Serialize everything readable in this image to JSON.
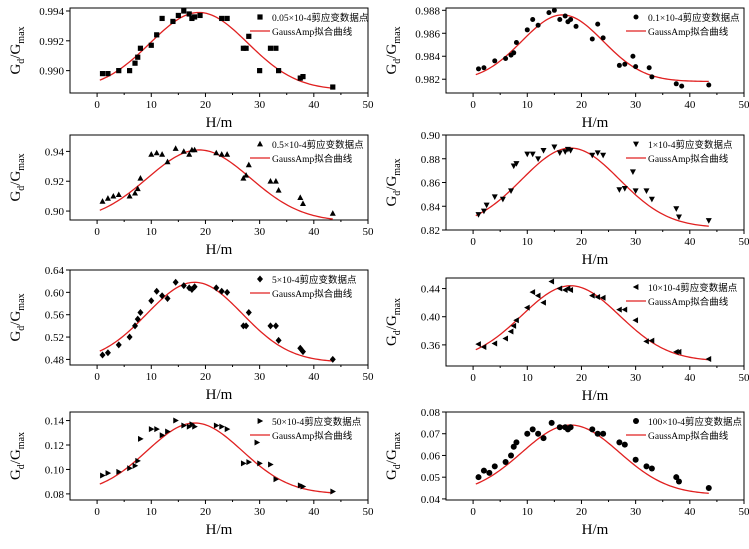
{
  "colors": {
    "fit_curve": "#e02020",
    "points": "#000000",
    "axis": "#000000"
  },
  "chart_data": [
    {
      "type": "scatter",
      "ylabel_main": "G",
      "ylabel_sub1": "d",
      "ylabel_sub2": "max",
      "xlabel": "H/m",
      "xlim": [
        -5,
        50
      ],
      "ylim": [
        0.9885,
        0.9942
      ],
      "xticks": [
        0,
        10,
        20,
        30,
        40,
        50
      ],
      "yticks": [
        0.99,
        0.992,
        0.994
      ],
      "ytick_labels": [
        "0.990",
        "0.992",
        "0.994"
      ],
      "marker": "square",
      "legend": {
        "points": "0.05×10-4剪应变数据点",
        "curve": "GaussAmp拟合曲线"
      },
      "fit": {
        "y0": 0.9887,
        "A": 0.0052,
        "xc": 18.8,
        "w": 9.0
      },
      "points_x": [
        1,
        2,
        4,
        6,
        7,
        7.5,
        8,
        10,
        11,
        12,
        14,
        15,
        16,
        17,
        17.5,
        18,
        19,
        23,
        24,
        27,
        27.5,
        28,
        30,
        32,
        33,
        33.5,
        37.5,
        38,
        43.5
      ],
      "points_y": [
        0.9898,
        0.9898,
        0.99,
        0.99,
        0.9905,
        0.9909,
        0.9915,
        0.9917,
        0.9924,
        0.9935,
        0.9933,
        0.9937,
        0.994,
        0.9938,
        0.9935,
        0.9936,
        0.9937,
        0.9935,
        0.9935,
        0.9915,
        0.9915,
        0.9923,
        0.99,
        0.9915,
        0.9915,
        0.99,
        0.9895,
        0.9896,
        0.9889
      ]
    },
    {
      "type": "scatter",
      "ylabel_main": "G",
      "ylabel_sub1": "d",
      "ylabel_sub2": "max",
      "xlabel": "H/m",
      "xlim": [
        -5,
        50
      ],
      "ylim": [
        0.9808,
        0.9882
      ],
      "xticks": [
        0,
        10,
        20,
        30,
        40,
        50
      ],
      "yticks": [
        0.982,
        0.984,
        0.986,
        0.988
      ],
      "ytick_labels": [
        "0.982",
        "0.984",
        "0.986",
        "0.988"
      ],
      "marker": "circle",
      "legend": {
        "points": "0.1×10-4剪应变数据点",
        "curve": "GaussAmp拟合曲线"
      },
      "fit": {
        "y0": 0.9818,
        "A": 0.0058,
        "xc": 16.5,
        "w": 7.5
      },
      "points_x": [
        1,
        2,
        4,
        6,
        7,
        7.5,
        8,
        10,
        11,
        12,
        14,
        15,
        16,
        17,
        17.5,
        18,
        19,
        22,
        23,
        24,
        27,
        28,
        29.5,
        30,
        32.5,
        33,
        37.5,
        38.5,
        43.5
      ],
      "points_y": [
        0.9829,
        0.983,
        0.9836,
        0.9838,
        0.9841,
        0.9843,
        0.9852,
        0.9863,
        0.9872,
        0.9867,
        0.9878,
        0.988,
        0.9872,
        0.9875,
        0.987,
        0.9872,
        0.9866,
        0.9855,
        0.9868,
        0.9856,
        0.9832,
        0.9833,
        0.984,
        0.9831,
        0.983,
        0.9822,
        0.9816,
        0.9814,
        0.9815
      ]
    },
    {
      "type": "scatter",
      "ylabel_main": "G",
      "ylabel_sub1": "d",
      "ylabel_sub2": "max",
      "xlabel": "H/m",
      "xlim": [
        -5,
        50
      ],
      "ylim": [
        0.894,
        0.951
      ],
      "xticks": [
        0,
        10,
        20,
        30,
        40,
        50
      ],
      "yticks": [
        0.9,
        0.92,
        0.94
      ],
      "ytick_labels": [
        "0.90",
        "0.92",
        "0.94"
      ],
      "marker": "triangle-up",
      "legend": {
        "points": "0.5×10-4剪应变数据点",
        "curve": "GaussAmp拟合曲线"
      },
      "fit": {
        "y0": 0.893,
        "A": 0.048,
        "xc": 18.8,
        "w": 9.5
      },
      "points_x": [
        1,
        2,
        3,
        4,
        6,
        7,
        7.5,
        8,
        10,
        11,
        12,
        13,
        14.5,
        16,
        17,
        17.5,
        18,
        22,
        23,
        24,
        27,
        27.5,
        28,
        32,
        33,
        33.5,
        37.5,
        38,
        43.5
      ],
      "points_y": [
        0.9065,
        0.9085,
        0.91,
        0.911,
        0.91,
        0.912,
        0.915,
        0.922,
        0.938,
        0.939,
        0.938,
        0.933,
        0.942,
        0.94,
        0.938,
        0.941,
        0.941,
        0.939,
        0.938,
        0.938,
        0.922,
        0.924,
        0.931,
        0.92,
        0.92,
        0.914,
        0.909,
        0.905,
        0.8985
      ]
    },
    {
      "type": "scatter",
      "ylabel_main": "G",
      "ylabel_sub1": "d",
      "ylabel_sub2": "max",
      "xlabel": "H/m",
      "xlim": [
        -5,
        50
      ],
      "ylim": [
        0.82,
        0.9
      ],
      "xticks": [
        0,
        10,
        20,
        30,
        40,
        50
      ],
      "yticks": [
        0.82,
        0.84,
        0.86,
        0.88,
        0.9
      ],
      "ytick_labels": [
        "0.82",
        "0.84",
        "0.86",
        "0.88",
        "0.90"
      ],
      "marker": "triangle-down",
      "legend": {
        "points": "1×10-4剪应变数据点",
        "curve": "GaussAmp拟合曲线"
      },
      "fit": {
        "y0": 0.822,
        "A": 0.067,
        "xc": 18.0,
        "w": 9.0
      },
      "points_x": [
        1,
        2,
        2.5,
        4,
        5.5,
        7,
        7.5,
        8,
        10,
        11,
        12,
        13,
        15,
        16,
        17,
        17.5,
        18,
        22,
        23,
        24,
        27,
        28,
        29.5,
        30,
        32,
        33,
        37.5,
        38,
        43.5
      ],
      "points_y": [
        0.833,
        0.836,
        0.841,
        0.848,
        0.846,
        0.853,
        0.874,
        0.876,
        0.884,
        0.884,
        0.88,
        0.887,
        0.89,
        0.885,
        0.886,
        0.888,
        0.887,
        0.883,
        0.885,
        0.883,
        0.854,
        0.855,
        0.869,
        0.853,
        0.853,
        0.846,
        0.838,
        0.831,
        0.828
      ]
    },
    {
      "type": "scatter",
      "ylabel_main": "G",
      "ylabel_sub1": "d",
      "ylabel_sub2": "max",
      "xlabel": "H/m",
      "xlim": [
        -5,
        50
      ],
      "ylim": [
        0.47,
        0.64
      ],
      "xticks": [
        0,
        10,
        20,
        30,
        40,
        50
      ],
      "yticks": [
        0.48,
        0.52,
        0.56,
        0.6,
        0.64
      ],
      "ytick_labels": [
        "0.48",
        "0.52",
        "0.56",
        "0.60",
        "0.64"
      ],
      "marker": "diamond",
      "legend": {
        "points": "5×10-4剪应变数据点",
        "curve": "GaussAmp拟合曲线"
      },
      "fit": {
        "y0": 0.475,
        "A": 0.143,
        "xc": 18.0,
        "w": 8.8
      },
      "points_x": [
        1,
        2,
        4,
        6,
        7,
        7.5,
        8,
        10,
        11,
        12,
        13,
        14.5,
        16,
        17,
        17.5,
        18,
        22,
        23,
        24,
        27,
        27.5,
        28,
        32,
        33,
        33.5,
        37.5,
        38,
        43.5
      ],
      "points_y": [
        0.488,
        0.492,
        0.506,
        0.52,
        0.54,
        0.552,
        0.564,
        0.585,
        0.602,
        0.594,
        0.589,
        0.618,
        0.612,
        0.608,
        0.605,
        0.61,
        0.608,
        0.602,
        0.6,
        0.54,
        0.54,
        0.564,
        0.54,
        0.54,
        0.514,
        0.5,
        0.494,
        0.48
      ]
    },
    {
      "type": "scatter",
      "ylabel_main": "G",
      "ylabel_sub1": "d",
      "ylabel_sub2": "max",
      "xlabel": "H/m",
      "xlim": [
        -5,
        50
      ],
      "ylim": [
        0.33,
        0.455
      ],
      "xticks": [
        0,
        10,
        20,
        30,
        40,
        50
      ],
      "yticks": [
        0.36,
        0.4,
        0.44
      ],
      "ytick_labels": [
        "0.36",
        "0.40",
        "0.44"
      ],
      "marker": "triangle-left",
      "legend": {
        "points": "10×10-4剪应变数据点",
        "curve": "GaussAmp拟合曲线"
      },
      "fit": {
        "y0": 0.337,
        "A": 0.107,
        "xc": 18.0,
        "w": 9.0
      },
      "points_x": [
        1,
        2,
        4,
        6,
        7,
        7.5,
        8,
        10,
        11,
        12,
        13,
        14.5,
        16,
        17,
        17.5,
        18,
        22,
        23,
        24,
        27,
        28,
        30,
        32,
        33,
        37.5,
        38,
        43.5
      ],
      "points_y": [
        0.361,
        0.357,
        0.362,
        0.369,
        0.379,
        0.387,
        0.395,
        0.413,
        0.435,
        0.43,
        0.42,
        0.45,
        0.44,
        0.438,
        0.44,
        0.438,
        0.43,
        0.428,
        0.427,
        0.41,
        0.41,
        0.395,
        0.365,
        0.366,
        0.35,
        0.35,
        0.34
      ]
    },
    {
      "type": "scatter",
      "ylabel_main": "G",
      "ylabel_sub1": "d",
      "ylabel_sub2": "max",
      "xlabel": "H/m",
      "xlim": [
        -5,
        50
      ],
      "ylim": [
        0.075,
        0.147
      ],
      "xticks": [
        0,
        10,
        20,
        30,
        40,
        50
      ],
      "yticks": [
        0.08,
        0.1,
        0.12,
        0.14
      ],
      "ytick_labels": [
        "0.08",
        "0.10",
        "0.12",
        "0.14"
      ],
      "marker": "triangle-right",
      "legend": {
        "points": "50×10-4剪应变数据点",
        "curve": "GaussAmp拟合曲线"
      },
      "fit": {
        "y0": 0.08,
        "A": 0.058,
        "xc": 18.0,
        "w": 8.8
      },
      "points_x": [
        1,
        2,
        4,
        6,
        7,
        7.5,
        8,
        10,
        11,
        12,
        13,
        14.5,
        16,
        17,
        17.5,
        18,
        22,
        23,
        24,
        27,
        28,
        29.5,
        30,
        32,
        33,
        37.5,
        38,
        43.5
      ],
      "points_y": [
        0.095,
        0.097,
        0.098,
        0.101,
        0.103,
        0.107,
        0.125,
        0.133,
        0.133,
        0.128,
        0.131,
        0.14,
        0.136,
        0.135,
        0.137,
        0.135,
        0.136,
        0.135,
        0.133,
        0.105,
        0.106,
        0.122,
        0.105,
        0.104,
        0.092,
        0.087,
        0.086,
        0.082
      ]
    },
    {
      "type": "scatter",
      "ylabel_main": "G",
      "ylabel_sub1": "d",
      "ylabel_sub2": "max",
      "xlabel": "H/m",
      "xlim": [
        -5,
        50
      ],
      "ylim": [
        0.0395,
        0.08
      ],
      "xticks": [
        0,
        10,
        20,
        30,
        40,
        50
      ],
      "yticks": [
        0.04,
        0.05,
        0.06,
        0.07,
        0.08
      ],
      "ytick_labels": [
        "0.04",
        "0.05",
        "0.06",
        "0.07",
        "0.08"
      ],
      "marker": "circle-large",
      "legend": {
        "points": "100×10-4剪应变数据点",
        "curve": "GaussAmp拟合曲线"
      },
      "fit": {
        "y0": 0.042,
        "A": 0.032,
        "xc": 18.0,
        "w": 9.0
      },
      "points_x": [
        1,
        2,
        3,
        4,
        6,
        7,
        7.5,
        8,
        10,
        11,
        12,
        13,
        14.5,
        16,
        17,
        17.5,
        18,
        22,
        23,
        24,
        27,
        28,
        30,
        32,
        33,
        37.5,
        38,
        43.5
      ],
      "points_y": [
        0.05,
        0.053,
        0.052,
        0.055,
        0.057,
        0.06,
        0.064,
        0.066,
        0.07,
        0.072,
        0.07,
        0.068,
        0.075,
        0.073,
        0.073,
        0.072,
        0.073,
        0.072,
        0.07,
        0.07,
        0.066,
        0.065,
        0.058,
        0.055,
        0.054,
        0.05,
        0.048,
        0.045
      ]
    }
  ]
}
